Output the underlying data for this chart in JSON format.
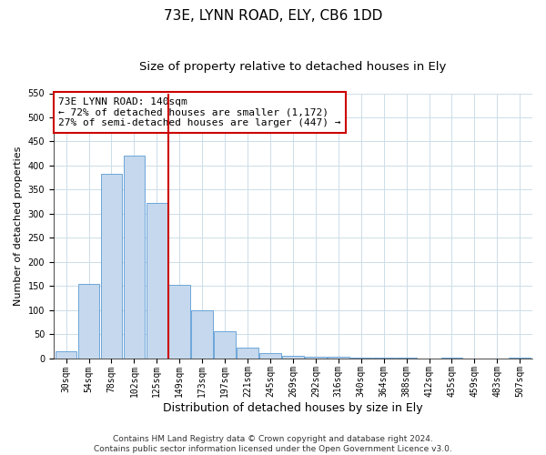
{
  "title": "73E, LYNN ROAD, ELY, CB6 1DD",
  "subtitle": "Size of property relative to detached houses in Ely",
  "xlabel": "Distribution of detached houses by size in Ely",
  "ylabel": "Number of detached properties",
  "annotation_line1": "73E LYNN ROAD: 140sqm",
  "annotation_line2": "← 72% of detached houses are smaller (1,172)",
  "annotation_line3": "27% of semi-detached houses are larger (447) →",
  "footer1": "Contains HM Land Registry data © Crown copyright and database right 2024.",
  "footer2": "Contains public sector information licensed under the Open Government Licence v3.0.",
  "bar_labels": [
    "30sqm",
    "54sqm",
    "78sqm",
    "102sqm",
    "125sqm",
    "149sqm",
    "173sqm",
    "197sqm",
    "221sqm",
    "245sqm",
    "269sqm",
    "292sqm",
    "316sqm",
    "340sqm",
    "364sqm",
    "388sqm",
    "412sqm",
    "435sqm",
    "459sqm",
    "483sqm",
    "507sqm"
  ],
  "bar_values": [
    15,
    155,
    383,
    420,
    323,
    153,
    100,
    55,
    22,
    10,
    5,
    3,
    2,
    1,
    1,
    1,
    0,
    1,
    0,
    0,
    1
  ],
  "bar_color": "#c5d8ed",
  "bar_edge_color": "#5b9bd5",
  "vline_index": 5,
  "vline_color": "#cc0000",
  "ylim": [
    0,
    550
  ],
  "yticks": [
    0,
    50,
    100,
    150,
    200,
    250,
    300,
    350,
    400,
    450,
    500,
    550
  ],
  "background_color": "#ffffff",
  "grid_color": "#ccdde8",
  "annotation_box_color": "#cc0000",
  "title_fontsize": 11,
  "subtitle_fontsize": 9.5,
  "xlabel_fontsize": 9,
  "ylabel_fontsize": 8,
  "tick_fontsize": 7,
  "annotation_fontsize": 8,
  "footer_fontsize": 6.5
}
